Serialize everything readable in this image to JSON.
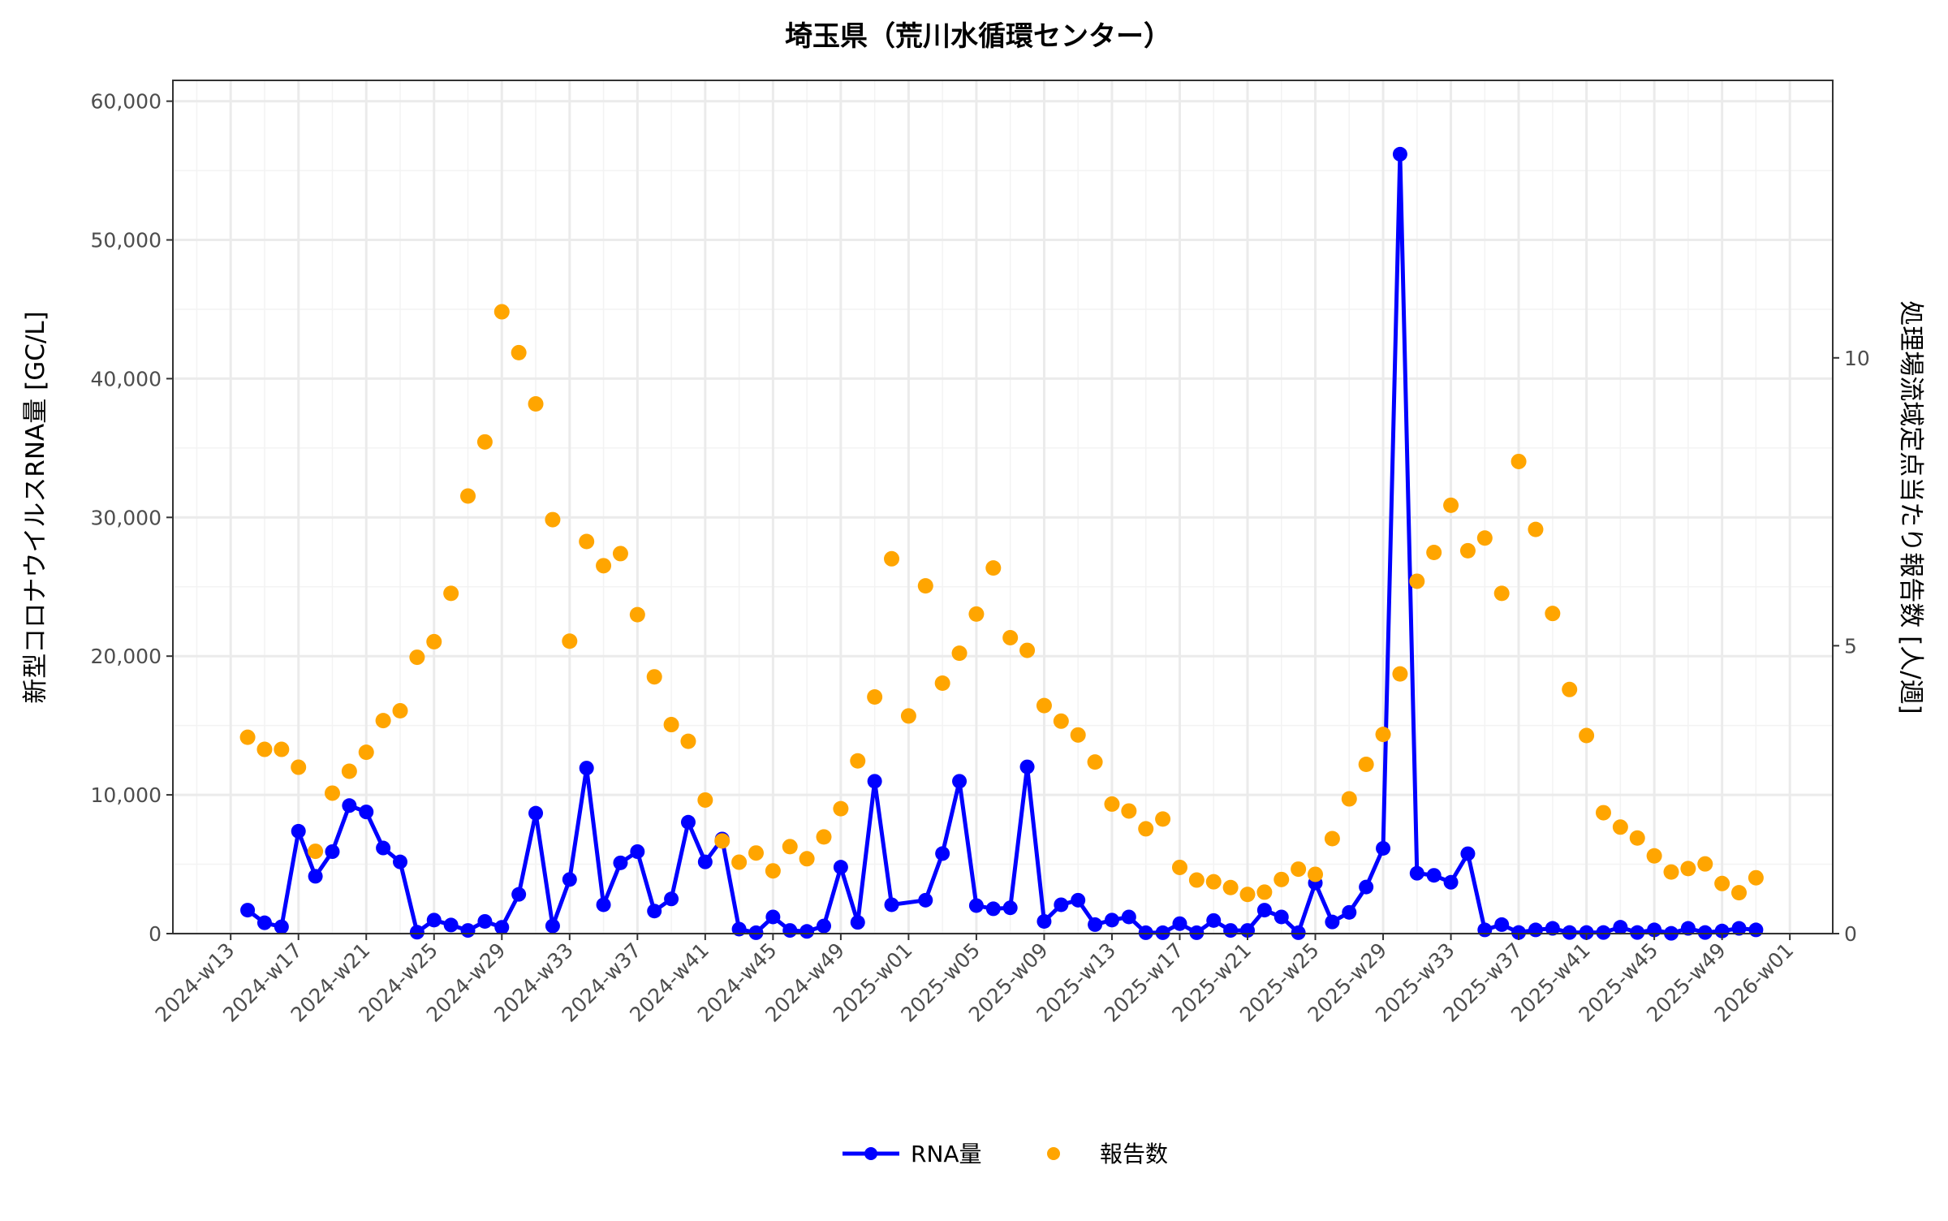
{
  "chart_data": {
    "type": "line",
    "title": "埼玉県（荒川水循環センター）",
    "ylabel": "新型コロナウイルスRNA量 [GC/L]",
    "ylabel_right": "処理場流域定点当たり報告数 [人/週]",
    "ylim": [
      0,
      61500
    ],
    "ylim_right": [
      0,
      14.8
    ],
    "right_axis_ratio": 4150,
    "yticks": [
      "0",
      "10,000",
      "20,000",
      "30,000",
      "40,000",
      "50,000",
      "60,000"
    ],
    "yticks_right": [
      "0",
      "5",
      "10"
    ],
    "xticks": [
      "2024-w13",
      "2024-w17",
      "2024-w21",
      "2024-w25",
      "2024-w29",
      "2024-w33",
      "2024-w37",
      "2024-w41",
      "2024-w45",
      "2024-w49",
      "2025-w01",
      "2025-w05",
      "2025-w09",
      "2025-w13",
      "2025-w17",
      "2025-w21",
      "2025-w25",
      "2025-w29",
      "2025-w33",
      "2025-w37",
      "2025-w41",
      "2025-w45",
      "2025-w49",
      "2026-w01"
    ],
    "grid": true,
    "legend_position": "bottom",
    "colors": {
      "rna": "#0000FF",
      "reports": "#FFA500"
    },
    "x": [
      "2024-w14",
      "2024-w15",
      "2024-w16",
      "2024-w17",
      "2024-w18",
      "2024-w19",
      "2024-w20",
      "2024-w21",
      "2024-w22",
      "2024-w23",
      "2024-w24",
      "2024-w25",
      "2024-w26",
      "2024-w27",
      "2024-w28",
      "2024-w29",
      "2024-w30",
      "2024-w31",
      "2024-w32",
      "2024-w33",
      "2024-w34",
      "2024-w35",
      "2024-w36",
      "2024-w37",
      "2024-w38",
      "2024-w39",
      "2024-w40",
      "2024-w41",
      "2024-w42",
      "2024-w43",
      "2024-w44",
      "2024-w45",
      "2024-w46",
      "2024-w47",
      "2024-w48",
      "2024-w49",
      "2024-w50",
      "2024-w51",
      "2024-w52",
      "2025-w01",
      "2025-w02",
      "2025-w03",
      "2025-w04",
      "2025-w05",
      "2025-w06",
      "2025-w07",
      "2025-w08",
      "2025-w09",
      "2025-w10",
      "2025-w11",
      "2025-w12",
      "2025-w13",
      "2025-w14",
      "2025-w15",
      "2025-w16",
      "2025-w17",
      "2025-w18",
      "2025-w19",
      "2025-w20",
      "2025-w21",
      "2025-w22",
      "2025-w23",
      "2025-w24",
      "2025-w25",
      "2025-w26",
      "2025-w27",
      "2025-w28",
      "2025-w29",
      "2025-w30",
      "2025-w31",
      "2025-w32",
      "2025-w33",
      "2025-w34",
      "2025-w35",
      "2025-w36",
      "2025-w37",
      "2025-w38",
      "2025-w39",
      "2025-w40",
      "2025-w41",
      "2025-w42",
      "2025-w43",
      "2025-w44",
      "2025-w45",
      "2025-w46",
      "2025-w47",
      "2025-w48",
      "2025-w49",
      "2025-w50",
      "2025-w51"
    ],
    "series": [
      {
        "name": "RNA量",
        "axis": "left",
        "style": "line+points",
        "values": [
          1690,
          780,
          490,
          7380,
          4130,
          5910,
          9230,
          8770,
          6170,
          5170,
          100,
          975,
          620,
          230,
          880,
          455,
          2830,
          8680,
          550,
          3900,
          11930,
          2080,
          5100,
          5910,
          1625,
          2500,
          8030,
          5170,
          6820,
          325,
          65,
          1200,
          230,
          160,
          550,
          4790,
          810,
          10980,
          2080,
          null,
          2410,
          5770,
          10980,
          2020,
          1790,
          1860,
          12020,
          880,
          2080,
          2410,
          650,
          975,
          1200,
          65,
          65,
          720,
          65,
          945,
          230,
          230,
          1690,
          1200,
          65,
          3650,
          840,
          1530,
          3360,
          6145,
          56180,
          4350,
          4200,
          3700,
          5760,
          270,
          650,
          80,
          270,
          380,
          80,
          80,
          80,
          460,
          80,
          270,
          20,
          380,
          80,
          190,
          380,
          270
        ]
      },
      {
        "name": "報告数",
        "axis": "right",
        "style": "points",
        "values": [
          3.41,
          3.2,
          3.2,
          2.89,
          1.43,
          2.44,
          2.82,
          3.15,
          3.7,
          3.87,
          4.8,
          5.07,
          5.91,
          7.6,
          8.54,
          10.8,
          10.09,
          9.2,
          7.19,
          5.08,
          6.81,
          6.39,
          6.6,
          5.54,
          4.46,
          3.63,
          3.34,
          2.32,
          1.61,
          1.24,
          1.4,
          1.09,
          1.51,
          1.3,
          1.68,
          2.17,
          3.0,
          4.11,
          6.51,
          3.78,
          6.04,
          4.35,
          4.87,
          5.55,
          6.35,
          5.14,
          4.92,
          3.96,
          3.69,
          3.45,
          2.98,
          2.25,
          2.13,
          1.82,
          1.99,
          1.15,
          0.93,
          0.9,
          0.8,
          0.68,
          0.72,
          0.94,
          1.12,
          1.03,
          1.65,
          2.34,
          2.94,
          3.46,
          4.51,
          6.12,
          6.62,
          7.44,
          6.65,
          6.87,
          5.91,
          8.2,
          7.02,
          5.56,
          4.24,
          3.44,
          2.1,
          1.85,
          1.66,
          1.35,
          1.07,
          1.13,
          1.21,
          0.87,
          0.71,
          0.97
        ]
      }
    ]
  }
}
